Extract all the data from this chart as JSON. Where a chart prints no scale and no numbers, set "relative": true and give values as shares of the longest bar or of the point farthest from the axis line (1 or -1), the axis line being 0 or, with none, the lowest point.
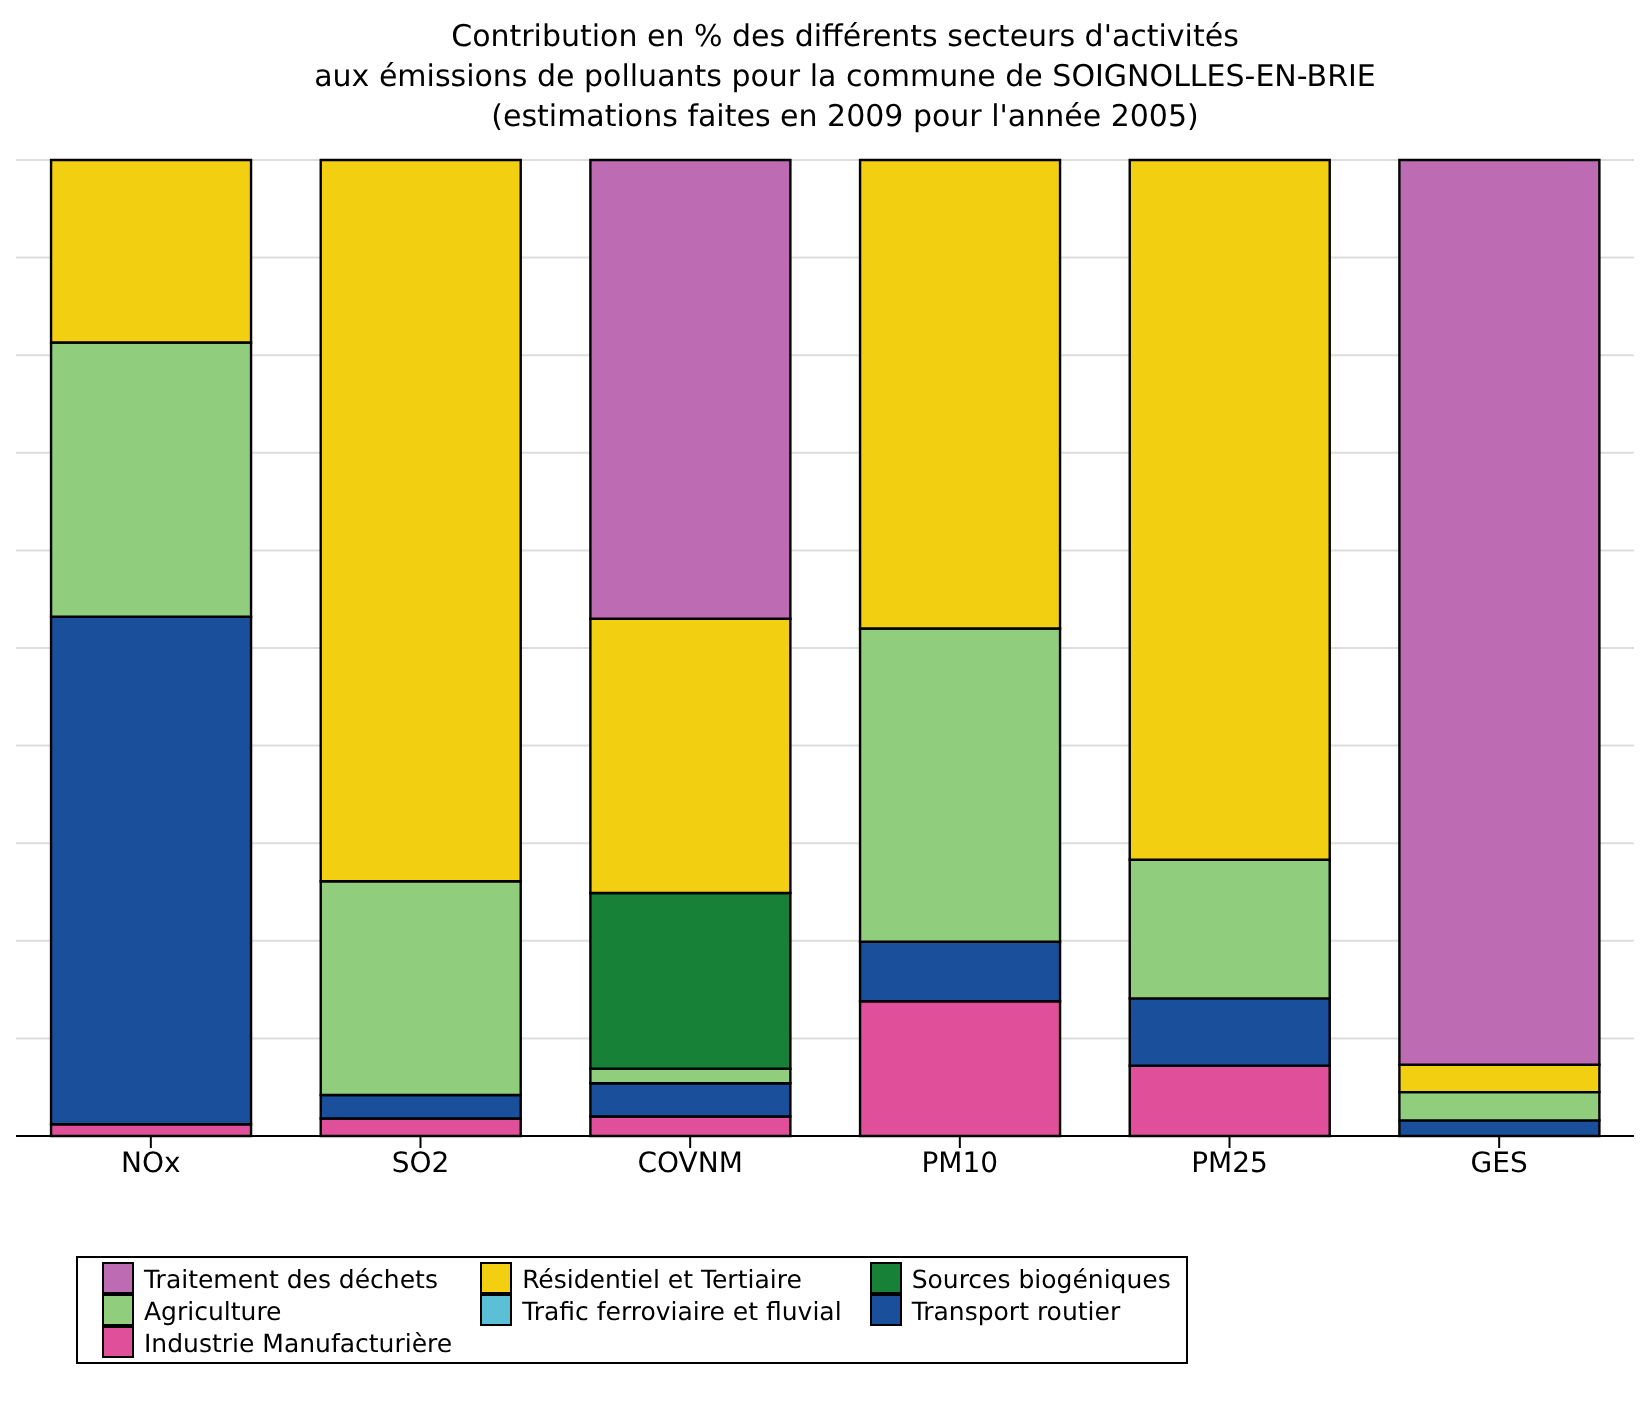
{
  "chart_data": {
    "type": "bar",
    "title": "Contribution en % des différents secteurs d'activités\naux émissions de polluants pour la commune de SOIGNOLLES-EN-BRIE\n(estimations faites en 2009 pour l'année 2005)",
    "categories": [
      "NOx",
      "SO2",
      "COVNM",
      "PM10",
      "PM25",
      "GES"
    ],
    "stacked": true,
    "relative": true,
    "grid": "y",
    "legend": "bottom",
    "series": [
      {
        "name": "Industrie Manufacturière",
        "color": "#e0509a",
        "values": [
          0.012,
          0.018,
          0.02,
          0.138,
          0.072,
          0
        ]
      },
      {
        "name": "Transport routier",
        "color": "#1a4f9c",
        "values": [
          0.52,
          0.024,
          0.034,
          0.061,
          0.069,
          0.016
        ]
      },
      {
        "name": "Trafic ferroviaire et fluvial",
        "color": "#5bc0d6",
        "values": [
          0,
          0,
          0,
          0,
          0,
          0
        ]
      },
      {
        "name": "Agriculture",
        "color": "#90cd7c",
        "values": [
          0.281,
          0.219,
          0.015,
          0.321,
          0.142,
          0.029
        ]
      },
      {
        "name": "Sources biogéniques",
        "color": "#178237",
        "values": [
          0,
          0,
          0.18,
          0,
          0,
          0
        ]
      },
      {
        "name": "Résidentiel et Tertiaire",
        "color": "#f2cf10",
        "values": [
          0.187,
          0.739,
          0.281,
          0.48,
          0.717,
          0.028
        ]
      },
      {
        "name": "Traitement des déchets",
        "color": "#bd6bb3",
        "values": [
          0,
          0,
          0.47,
          0,
          0,
          0.927
        ]
      }
    ]
  }
}
